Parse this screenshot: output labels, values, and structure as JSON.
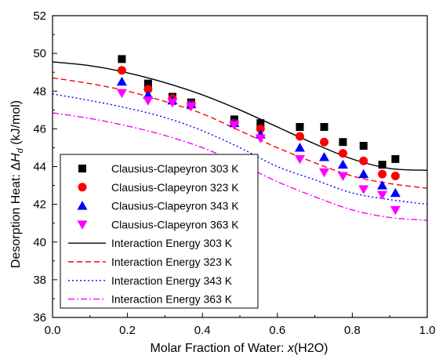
{
  "chart_data": {
    "type": "scatter",
    "xlabel": "Molar Fraction of Water: x(H2O)",
    "xlabel_parts": [
      "Molar Fraction of Water: ",
      "x",
      "(H2O)"
    ],
    "ylabel": "Desorption Heat: ΔHd (kJ/mol)",
    "ylabel_parts": [
      "Desorption Heat: ",
      "Δ",
      "H",
      "d",
      " (kJ/mol)"
    ],
    "xlim": [
      0.0,
      1.0
    ],
    "ylim": [
      36,
      52
    ],
    "xticks": [
      0.0,
      0.2,
      0.4,
      0.6,
      0.8,
      1.0
    ],
    "xtick_labels": [
      "0.0",
      "0.2",
      "0.4",
      "0.6",
      "0.8",
      "1.0"
    ],
    "yticks": [
      36,
      38,
      40,
      42,
      44,
      46,
      48,
      50,
      52
    ],
    "ytick_labels": [
      "36",
      "38",
      "40",
      "42",
      "44",
      "46",
      "48",
      "50",
      "52"
    ],
    "legend_position": "bottom-left",
    "series": [
      {
        "name": "Clausius-Clapeyron 303 K",
        "kind": "marker",
        "marker": "square",
        "color": "#000000",
        "x": [
          0.185,
          0.255,
          0.32,
          0.37,
          0.485,
          0.555,
          0.66,
          0.725,
          0.775,
          0.83,
          0.88,
          0.915
        ],
        "y": [
          49.7,
          48.4,
          47.7,
          47.4,
          46.5,
          46.3,
          46.1,
          46.1,
          45.3,
          45.1,
          44.1,
          44.4
        ]
      },
      {
        "name": "Clausius-Clapeyron 323 K",
        "kind": "marker",
        "marker": "circle",
        "color": "#ff0000",
        "x": [
          0.185,
          0.255,
          0.32,
          0.37,
          0.485,
          0.555,
          0.66,
          0.725,
          0.775,
          0.83,
          0.88,
          0.915
        ],
        "y": [
          49.1,
          48.1,
          47.6,
          47.3,
          46.3,
          46.0,
          45.6,
          45.3,
          44.7,
          44.3,
          43.6,
          43.5
        ]
      },
      {
        "name": "Clausius-Clapeyron 343 K",
        "kind": "marker",
        "marker": "triangle-up",
        "color": "#0000ff",
        "x": [
          0.185,
          0.255,
          0.32,
          0.37,
          0.485,
          0.555,
          0.66,
          0.725,
          0.775,
          0.83,
          0.88,
          0.915
        ],
        "y": [
          48.5,
          47.8,
          47.5,
          47.3,
          46.3,
          45.7,
          45.0,
          44.5,
          44.1,
          43.6,
          43.0,
          42.6
        ]
      },
      {
        "name": "Clausius-Clapeyron 363 K",
        "kind": "marker",
        "marker": "triangle-down",
        "color": "#ff00ff",
        "x": [
          0.185,
          0.255,
          0.32,
          0.37,
          0.485,
          0.555,
          0.66,
          0.725,
          0.775,
          0.83,
          0.88,
          0.915
        ],
        "y": [
          47.9,
          47.5,
          47.4,
          47.2,
          46.2,
          45.5,
          44.4,
          43.7,
          43.5,
          42.8,
          42.5,
          41.7
        ]
      },
      {
        "name": "Interaction Energy 303 K",
        "kind": "line",
        "dash": "solid",
        "color": "#000000",
        "x": [
          0.0,
          0.1,
          0.2,
          0.3,
          0.4,
          0.5,
          0.6,
          0.7,
          0.8,
          0.9,
          1.0
        ],
        "y": [
          49.55,
          49.35,
          48.97,
          48.45,
          47.8,
          47.0,
          46.1,
          45.2,
          44.4,
          43.9,
          43.8
        ]
      },
      {
        "name": "Interaction Energy 323 K",
        "kind": "line",
        "dash": "dashed",
        "color": "#ff0000",
        "x": [
          0.0,
          0.1,
          0.2,
          0.3,
          0.4,
          0.5,
          0.6,
          0.7,
          0.8,
          0.9,
          1.0
        ],
        "y": [
          48.7,
          48.4,
          48.0,
          47.45,
          46.8,
          45.9,
          45.0,
          44.2,
          43.5,
          43.1,
          42.85
        ]
      },
      {
        "name": "Interaction Energy 343 K",
        "kind": "line",
        "dash": "dotted",
        "color": "#0000ff",
        "x": [
          0.0,
          0.1,
          0.2,
          0.3,
          0.4,
          0.5,
          0.6,
          0.7,
          0.8,
          0.9,
          1.0
        ],
        "y": [
          47.85,
          47.5,
          47.1,
          46.6,
          45.9,
          45.0,
          44.0,
          43.3,
          42.6,
          42.25,
          42.0
        ]
      },
      {
        "name": "Interaction Energy 363 K",
        "kind": "line",
        "dash": "dashdot",
        "color": "#ff00ff",
        "x": [
          0.0,
          0.1,
          0.2,
          0.3,
          0.4,
          0.5,
          0.6,
          0.7,
          0.8,
          0.9,
          1.0
        ],
        "y": [
          46.85,
          46.55,
          46.15,
          45.65,
          45.0,
          44.15,
          43.2,
          42.4,
          41.7,
          41.3,
          41.15
        ]
      }
    ]
  }
}
